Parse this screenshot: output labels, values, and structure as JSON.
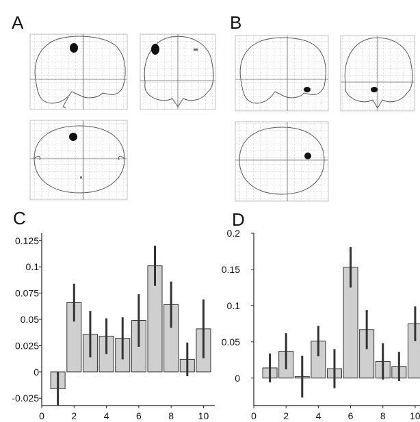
{
  "panels": {
    "a": "A",
    "b": "B",
    "c": "C",
    "d": "D"
  },
  "chart_data": [
    {
      "panel": "C",
      "type": "bar",
      "x": [
        1,
        2,
        3,
        4,
        5,
        6,
        7,
        8,
        9,
        10
      ],
      "values": [
        -0.016,
        0.066,
        0.036,
        0.034,
        0.032,
        0.049,
        0.101,
        0.064,
        0.012,
        0.041
      ],
      "error": [
        0.016,
        0.018,
        0.022,
        0.017,
        0.02,
        0.025,
        0.019,
        0.022,
        0.016,
        0.028
      ],
      "xticks": [
        0,
        2,
        4,
        6,
        8,
        10
      ],
      "yticks": [
        -0.025,
        0,
        0.025,
        0.05,
        0.075,
        0.1,
        0.125
      ],
      "ytick_labels": [
        "-0.025",
        "0",
        "0.025",
        "0.05",
        "0.075",
        "0.1",
        "0.125"
      ],
      "xlim": [
        0,
        10.7
      ],
      "ylim": [
        -0.032,
        0.132
      ],
      "title": "",
      "xlabel": "",
      "ylabel": "",
      "bar_color": "#cfcfcf"
    },
    {
      "panel": "D",
      "type": "bar",
      "x": [
        1,
        2,
        3,
        4,
        5,
        6,
        7,
        8,
        9,
        10
      ],
      "values": [
        0.014,
        0.037,
        0.002,
        0.051,
        0.013,
        0.153,
        0.067,
        0.023,
        0.016,
        0.075
      ],
      "error": [
        0.02,
        0.025,
        0.029,
        0.021,
        0.027,
        0.028,
        0.027,
        0.025,
        0.02,
        0.024
      ],
      "xticks": [
        0,
        2,
        4,
        6,
        8,
        10
      ],
      "yticks": [
        0,
        0.05,
        0.1,
        0.15,
        0.2
      ],
      "ytick_labels": [
        "0",
        "0.05",
        "0.1",
        "0.15",
        "0.2"
      ],
      "xlim": [
        0,
        10.3
      ],
      "ylim": [
        -0.038,
        0.2
      ],
      "title": "",
      "xlabel": "",
      "ylabel": "",
      "bar_color": "#cfcfcf"
    }
  ]
}
